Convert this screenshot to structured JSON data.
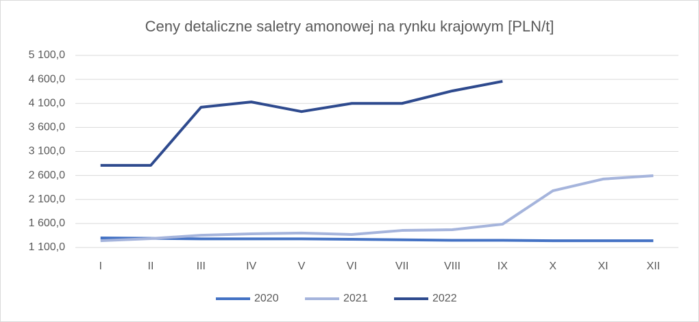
{
  "chart_data": {
    "type": "line",
    "title": "Ceny detaliczne saletry amonowej na rynku krajowym [PLN/t]",
    "categories": [
      "I",
      "II",
      "III",
      "IV",
      "V",
      "VI",
      "VII",
      "VIII",
      "IX",
      "X",
      "XI",
      "XII"
    ],
    "series": [
      {
        "name": "2020",
        "color": "#4472c4",
        "values": [
          1300,
          1290,
          1280,
          1280,
          1280,
          1270,
          1260,
          1250,
          1250,
          1240,
          1240,
          1240
        ]
      },
      {
        "name": "2021",
        "color": "#a5b4dc",
        "values": [
          1240,
          1285,
          1355,
          1385,
          1400,
          1370,
          1455,
          1470,
          1585,
          2280,
          2525,
          2595
        ]
      },
      {
        "name": "2022",
        "color": "#2e4a8e",
        "values": [
          2810,
          2810,
          4020,
          4130,
          3930,
          4100,
          4100,
          4360,
          4560,
          null,
          null,
          null
        ]
      }
    ],
    "ylim": [
      1100,
      5100
    ],
    "yticks": [
      {
        "value": 1100,
        "label": "1 100,0"
      },
      {
        "value": 1600,
        "label": "1 600,0"
      },
      {
        "value": 2100,
        "label": "2 100,0"
      },
      {
        "value": 2600,
        "label": "2 600,0"
      },
      {
        "value": 3100,
        "label": "3 100,0"
      },
      {
        "value": 3600,
        "label": "3 600,0"
      },
      {
        "value": 4100,
        "label": "4 100,0"
      },
      {
        "value": 4600,
        "label": "4 600,0"
      },
      {
        "value": 5100,
        "label": "5 100,0"
      }
    ],
    "grid": true
  }
}
